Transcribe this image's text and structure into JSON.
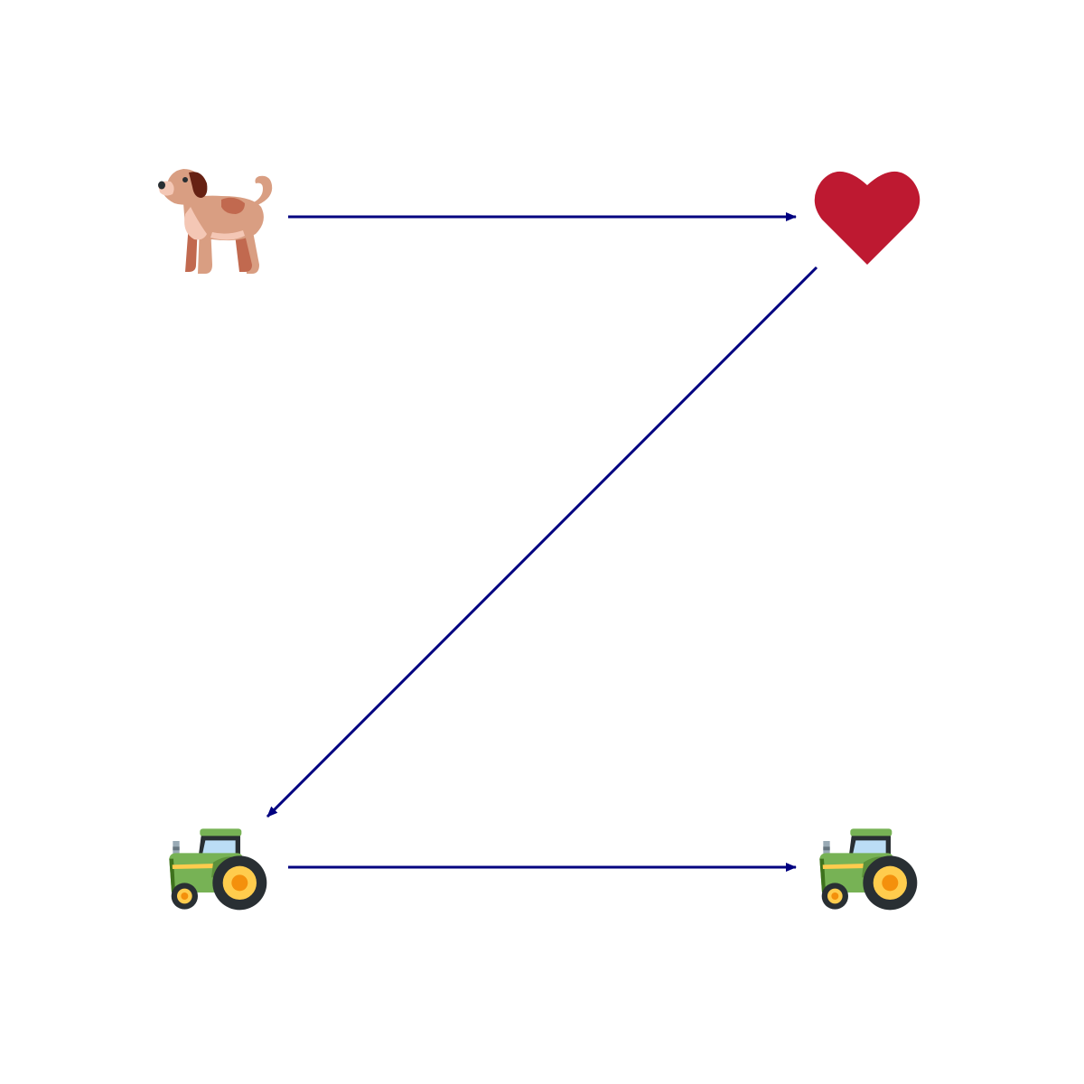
{
  "diagram": {
    "nodes": [
      {
        "id": "dog",
        "icon": "dog-icon"
      },
      {
        "id": "heart",
        "icon": "heart-icon"
      },
      {
        "id": "tractor-left",
        "icon": "tractor-icon"
      },
      {
        "id": "tractor-right",
        "icon": "tractor-icon"
      }
    ],
    "edges": [
      {
        "from": "dog",
        "to": "heart"
      },
      {
        "from": "heart",
        "to": "tractor-left"
      },
      {
        "from": "tractor-left",
        "to": "tractor-right"
      }
    ]
  },
  "colors": {
    "background": "#ffffff",
    "arrow": "#000080",
    "heart": "#BE1931",
    "dog_body": "#D99E82",
    "dog_dark": "#C1694F",
    "dog_ear": "#662113",
    "tractor_body": "#77B255",
    "tractor_dark": "#3E721D",
    "tractor_cab": "#292F33",
    "tractor_window": "#BBDDF5",
    "tractor_stripe": "#FFCC4D",
    "wheel_rim": "#FFCC4D",
    "wheel_hub": "#F4900C",
    "exhaust": "#99AAB5"
  }
}
